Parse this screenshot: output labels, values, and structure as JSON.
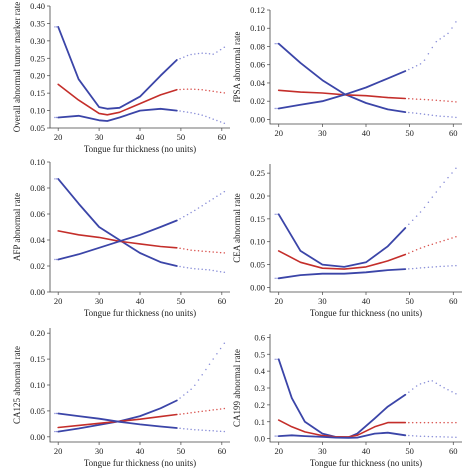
{
  "colors": {
    "ci_band": "#3b45a8",
    "estimate": "#c42e2a",
    "dotted_ci": "#8a8fd8",
    "dotted_estimate": "#d9534f"
  },
  "chart_data": [
    {
      "type": "line",
      "xlabel": "Tongue fur thickness (no units)",
      "ylabel": "Overall abnormal tumor marker rate",
      "xlim": [
        18,
        62
      ],
      "ylim": [
        0.05,
        0.4
      ],
      "xticks": [
        20,
        30,
        40,
        50,
        60
      ],
      "yticks": [
        0.05,
        0.1,
        0.15,
        0.2,
        0.25,
        0.3,
        0.35,
        0.4
      ],
      "ytick_labels": [
        "0.05",
        "0.10",
        "0.15",
        "0.20",
        "0.25",
        "0.30",
        "0.35",
        "0.40"
      ],
      "solid_until": 49,
      "series": [
        {
          "role": "upper",
          "x": [
            20,
            25,
            30,
            32,
            35,
            40,
            45,
            49,
            52,
            55,
            58,
            61
          ],
          "y": [
            0.34,
            0.19,
            0.11,
            0.105,
            0.108,
            0.14,
            0.2,
            0.245,
            0.26,
            0.265,
            0.262,
            0.285
          ]
        },
        {
          "role": "estimate",
          "x": [
            20,
            25,
            30,
            32,
            35,
            40,
            45,
            49,
            52,
            55,
            58,
            61
          ],
          "y": [
            0.175,
            0.13,
            0.092,
            0.088,
            0.095,
            0.12,
            0.145,
            0.16,
            0.162,
            0.16,
            0.155,
            0.15
          ]
        },
        {
          "role": "lower",
          "x": [
            20,
            25,
            30,
            32,
            35,
            40,
            45,
            49,
            52,
            55,
            58,
            61
          ],
          "y": [
            0.08,
            0.085,
            0.072,
            0.07,
            0.08,
            0.1,
            0.105,
            0.1,
            0.095,
            0.088,
            0.075,
            0.062
          ]
        }
      ]
    },
    {
      "type": "line",
      "xlabel": "",
      "ylabel": "fPSA abnormal rate",
      "xlim": [
        18,
        62
      ],
      "ylim": [
        -0.005,
        0.12
      ],
      "xticks": [
        20,
        30,
        40,
        50,
        60
      ],
      "yticks": [
        0.0,
        0.02,
        0.04,
        0.06,
        0.08,
        0.1,
        0.12
      ],
      "ytick_labels": [
        "0.00",
        "0.02",
        "0.04",
        "0.06",
        "0.08",
        "0.10",
        "0.12"
      ],
      "solid_until": 49,
      "series": [
        {
          "role": "upper",
          "x": [
            20,
            25,
            30,
            35,
            40,
            45,
            49,
            53,
            56,
            59,
            61
          ],
          "y": [
            0.083,
            0.062,
            0.043,
            0.028,
            0.018,
            0.011,
            0.008,
            0.006,
            0.004,
            0.003,
            0.002
          ]
        },
        {
          "role": "estimate",
          "x": [
            20,
            25,
            30,
            35,
            40,
            45,
            49,
            53,
            56,
            59,
            61
          ],
          "y": [
            0.032,
            0.03,
            0.029,
            0.027,
            0.026,
            0.024,
            0.023,
            0.022,
            0.021,
            0.02,
            0.019
          ]
        },
        {
          "role": "lower",
          "x": [
            20,
            25,
            30,
            35,
            40,
            45,
            49,
            53,
            56,
            59,
            61
          ],
          "y": [
            0.012,
            0.016,
            0.02,
            0.027,
            0.035,
            0.045,
            0.053,
            0.062,
            0.085,
            0.095,
            0.11
          ]
        }
      ]
    },
    {
      "type": "line",
      "xlabel": "Tongue fur thickness (no units)",
      "ylabel": "AFP abnormal rate",
      "xlim": [
        18,
        62
      ],
      "ylim": [
        0.0,
        0.1
      ],
      "xticks": [
        20,
        30,
        40,
        50,
        60
      ],
      "yticks": [
        0.0,
        0.02,
        0.04,
        0.06,
        0.08,
        0.1
      ],
      "ytick_labels": [
        "0.00",
        "0.02",
        "0.04",
        "0.06",
        "0.08",
        "0.10"
      ],
      "solid_until": 49,
      "series": [
        {
          "role": "upper",
          "x": [
            20,
            25,
            30,
            35,
            40,
            45,
            49,
            53,
            57,
            61
          ],
          "y": [
            0.087,
            0.068,
            0.05,
            0.04,
            0.03,
            0.023,
            0.02,
            0.018,
            0.017,
            0.015
          ]
        },
        {
          "role": "estimate",
          "x": [
            20,
            25,
            30,
            35,
            40,
            45,
            49,
            53,
            57,
            61
          ],
          "y": [
            0.047,
            0.044,
            0.042,
            0.039,
            0.037,
            0.035,
            0.034,
            0.032,
            0.031,
            0.03
          ]
        },
        {
          "role": "lower",
          "x": [
            20,
            25,
            30,
            35,
            40,
            45,
            49,
            53,
            57,
            61
          ],
          "y": [
            0.025,
            0.029,
            0.034,
            0.039,
            0.044,
            0.05,
            0.055,
            0.062,
            0.07,
            0.078
          ]
        }
      ]
    },
    {
      "type": "line",
      "xlabel": "Tongue fur thickness (no units)",
      "ylabel": "CEA abnormal rate",
      "xlim": [
        18,
        62
      ],
      "ylim": [
        -0.01,
        0.27
      ],
      "xticks": [
        20,
        30,
        40,
        50,
        60
      ],
      "yticks": [
        0.0,
        0.05,
        0.1,
        0.15,
        0.2,
        0.25
      ],
      "ytick_labels": [
        "0.00",
        "0.05",
        "0.10",
        "0.15",
        "0.20",
        "0.25"
      ],
      "solid_until": 49,
      "series": [
        {
          "role": "upper",
          "x": [
            20,
            25,
            30,
            35,
            40,
            45,
            49,
            53,
            57,
            61
          ],
          "y": [
            0.16,
            0.08,
            0.05,
            0.045,
            0.055,
            0.09,
            0.13,
            0.17,
            0.22,
            0.265
          ]
        },
        {
          "role": "estimate",
          "x": [
            20,
            25,
            30,
            35,
            40,
            45,
            49,
            53,
            57,
            61
          ],
          "y": [
            0.08,
            0.055,
            0.042,
            0.04,
            0.045,
            0.058,
            0.072,
            0.088,
            0.1,
            0.112
          ]
        },
        {
          "role": "lower",
          "x": [
            20,
            25,
            30,
            35,
            40,
            45,
            49,
            53,
            57,
            61
          ],
          "y": [
            0.02,
            0.027,
            0.03,
            0.03,
            0.033,
            0.038,
            0.04,
            0.043,
            0.046,
            0.048
          ]
        }
      ]
    },
    {
      "type": "line",
      "xlabel": "Tongue fur thickness (no units)",
      "ylabel": "CA125 abnormal rate",
      "xlim": [
        18,
        62
      ],
      "ylim": [
        -0.01,
        0.21
      ],
      "xticks": [
        20,
        30,
        40,
        50,
        60
      ],
      "yticks": [
        0.0,
        0.05,
        0.1,
        0.15,
        0.2
      ],
      "ytick_labels": [
        "0.00",
        "0.05",
        "0.10",
        "0.15",
        "0.20"
      ],
      "solid_until": 49,
      "series": [
        {
          "role": "upper",
          "x": [
            20,
            25,
            30,
            35,
            40,
            45,
            49,
            53,
            57,
            61
          ],
          "y": [
            0.01,
            0.016,
            0.023,
            0.03,
            0.04,
            0.055,
            0.07,
            0.095,
            0.14,
            0.185
          ]
        },
        {
          "role": "estimate",
          "x": [
            20,
            25,
            30,
            35,
            40,
            45,
            49,
            53,
            57,
            61
          ],
          "y": [
            0.018,
            0.022,
            0.026,
            0.03,
            0.034,
            0.039,
            0.043,
            0.047,
            0.051,
            0.055
          ]
        },
        {
          "role": "lower",
          "x": [
            20,
            25,
            30,
            35,
            40,
            45,
            49,
            53,
            57,
            61
          ],
          "y": [
            0.045,
            0.04,
            0.035,
            0.029,
            0.024,
            0.02,
            0.017,
            0.014,
            0.012,
            0.01
          ]
        }
      ]
    },
    {
      "type": "line",
      "xlabel": "Tongue fur thickness (no units)",
      "ylabel": "CA199 abnormal rate",
      "xlim": [
        18,
        62
      ],
      "ylim": [
        -0.02,
        0.62
      ],
      "xticks": [
        20,
        30,
        40,
        50,
        60
      ],
      "yticks": [
        0.0,
        0.1,
        0.2,
        0.3,
        0.4,
        0.5,
        0.6
      ],
      "ytick_labels": [
        "0.0",
        "0.1",
        "0.2",
        "0.3",
        "0.4",
        "0.5",
        "0.6"
      ],
      "solid_until": 49,
      "series": [
        {
          "role": "upper",
          "x": [
            20,
            23,
            26,
            30,
            33,
            36,
            38,
            42,
            45,
            49,
            52,
            55,
            58,
            61
          ],
          "y": [
            0.47,
            0.24,
            0.1,
            0.03,
            0.01,
            0.008,
            0.03,
            0.12,
            0.19,
            0.26,
            0.32,
            0.345,
            0.3,
            0.26
          ]
        },
        {
          "role": "estimate",
          "x": [
            20,
            23,
            26,
            30,
            33,
            36,
            38,
            42,
            45,
            49,
            52,
            55,
            58,
            61
          ],
          "y": [
            0.11,
            0.07,
            0.04,
            0.018,
            0.01,
            0.01,
            0.02,
            0.07,
            0.095,
            0.095,
            0.095,
            0.095,
            0.095,
            0.095
          ]
        },
        {
          "role": "lower",
          "x": [
            20,
            23,
            26,
            30,
            33,
            36,
            38,
            42,
            45,
            49,
            52,
            55,
            58,
            61
          ],
          "y": [
            0.015,
            0.02,
            0.015,
            0.01,
            0.006,
            0.005,
            0.006,
            0.03,
            0.035,
            0.02,
            0.015,
            0.012,
            0.01,
            0.008
          ]
        }
      ]
    }
  ]
}
